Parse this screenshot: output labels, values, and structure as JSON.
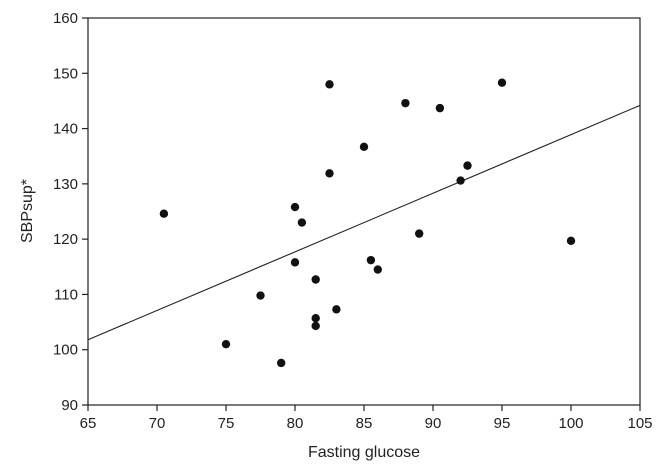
{
  "chart_data": {
    "type": "scatter",
    "xlabel": "Fasting glucose",
    "ylabel": "SBPsup*",
    "xlim": [
      65,
      105
    ],
    "ylim": [
      90,
      160
    ],
    "x_ticks": [
      "65",
      "70",
      "75",
      "80",
      "85",
      "90",
      "95",
      "100",
      "105"
    ],
    "y_ticks": [
      "90",
      "100",
      "110",
      "120",
      "130",
      "140",
      "150",
      "160"
    ],
    "grid": false,
    "legend": "none",
    "series": [
      {
        "points": [
          {
            "x": 70.5,
            "y": 124.6
          },
          {
            "x": 75.0,
            "y": 101.0
          },
          {
            "x": 77.5,
            "y": 109.8
          },
          {
            "x": 79.0,
            "y": 97.6
          },
          {
            "x": 80.0,
            "y": 125.8
          },
          {
            "x": 80.0,
            "y": 115.8
          },
          {
            "x": 80.5,
            "y": 123.0
          },
          {
            "x": 81.5,
            "y": 112.7
          },
          {
            "x": 81.5,
            "y": 105.7
          },
          {
            "x": 81.5,
            "y": 104.3
          },
          {
            "x": 82.5,
            "y": 148.0
          },
          {
            "x": 82.5,
            "y": 131.9
          },
          {
            "x": 83.0,
            "y": 107.3
          },
          {
            "x": 85.0,
            "y": 136.7
          },
          {
            "x": 85.5,
            "y": 116.2
          },
          {
            "x": 86.0,
            "y": 114.5
          },
          {
            "x": 88.0,
            "y": 144.6
          },
          {
            "x": 89.0,
            "y": 121.0
          },
          {
            "x": 90.5,
            "y": 143.7
          },
          {
            "x": 92.0,
            "y": 130.6
          },
          {
            "x": 92.5,
            "y": 133.3
          },
          {
            "x": 95.0,
            "y": 148.3
          },
          {
            "x": 100.0,
            "y": 119.7
          }
        ]
      }
    ],
    "fit_line": {
      "x": [
        65,
        105
      ],
      "y": [
        101.8,
        144.2
      ]
    }
  }
}
